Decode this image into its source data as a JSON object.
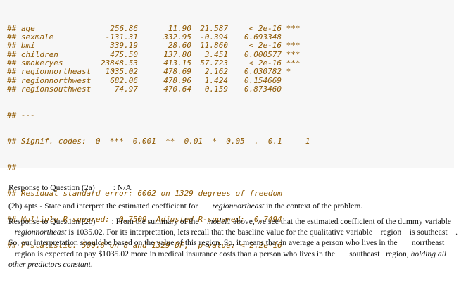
{
  "code_output": {
    "rows": [
      {
        "term": "## age",
        "estimate": "256.86",
        "se": "11.90",
        "t": "21.587",
        "p": "< 2e-16",
        "sig": "***"
      },
      {
        "term": "## sexmale",
        "estimate": "-131.31",
        "se": "332.95",
        "t": "-0.394",
        "p": "0.693348",
        "sig": ""
      },
      {
        "term": "## bmi",
        "estimate": "339.19",
        "se": "28.60",
        "t": "11.860",
        "p": "< 2e-16",
        "sig": "***"
      },
      {
        "term": "## children",
        "estimate": "475.50",
        "se": "137.80",
        "t": "3.451",
        "p": "0.000577",
        "sig": "***"
      },
      {
        "term": "## smokeryes",
        "estimate": "23848.53",
        "se": "413.15",
        "t": "57.723",
        "p": "< 2e-16",
        "sig": "***"
      },
      {
        "term": "## regionnortheast",
        "estimate": "1035.02",
        "se": "478.69",
        "t": "2.162",
        "p": "0.030782",
        "sig": "*"
      },
      {
        "term": "## regionnorthwest",
        "estimate": "682.06",
        "se": "478.96",
        "t": "1.424",
        "p": "0.154669",
        "sig": ""
      },
      {
        "term": "## regionsouthwest",
        "estimate": "74.97",
        "se": "470.64",
        "t": "0.159",
        "p": "0.873460",
        "sig": ""
      }
    ],
    "sep_hash": "## ---",
    "signif_line": "## Signif. codes:  0  ***  0.001  **  0.01  *  0.05  .  0.1     1",
    "blank_hash": "##",
    "rse_line": "## Residual standard error: 6062 on 1329 degrees of freedom",
    "r2_line": "## Multiple R-squared:  0.7509, Adjusted R-squared:  0.7494",
    "f_line": "## F-statistic: 500.8 on 8 and 1329 DF,  p-value: < 2.2e-16"
  },
  "response_2a": {
    "label": "Response to Question (2a)",
    "value": ": N/A"
  },
  "question_2b": {
    "text": "(2b) 4pts - State and interpret the estimated coefficient for",
    "var": "regionnortheast",
    "tail": "in the context of the problem."
  },
  "response_2b": {
    "label": "Response to Question (2b)",
    "part1": ": From the summary of the",
    "model": "model1",
    "part2": "above, we see that the estimated coefficient of the dummy variable",
    "var": "regionnortheast",
    "part3": "is 1035.02. For its interpretation, lets recall that the baseline value for the qualitative variable",
    "region_word": "region",
    "part4": "is southeast",
    "part5": ". So, our interpretation should be based on the value of this region. So, it means that in average a person who lives in the",
    "northeast_word": "norrtheast",
    "part6": "region is expected to pay $1035.02 more in medical insurance costs than a person who lives in the",
    "southeast_word": "southeast",
    "part7": "region,",
    "emph": "holding all other predictors constant",
    "end": "."
  }
}
